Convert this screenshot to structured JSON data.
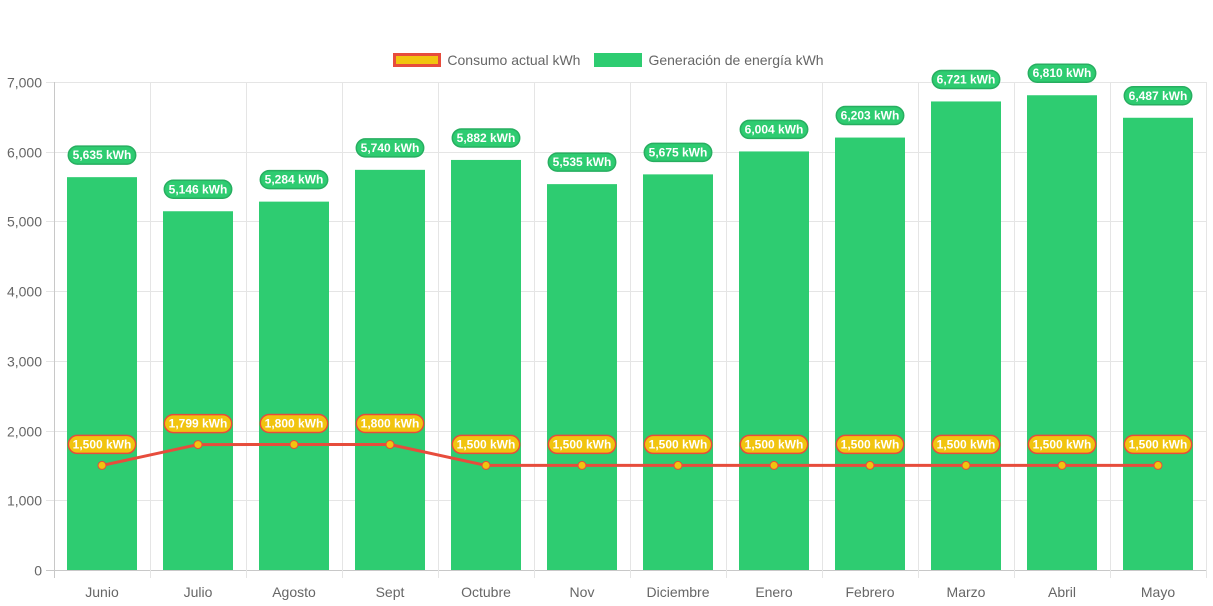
{
  "chart_data": {
    "type": "bar",
    "title": "",
    "xlabel": "",
    "ylabel": "",
    "ylim": [
      0,
      7000
    ],
    "yticks": [
      "0",
      "1,000",
      "2,000",
      "3,000",
      "4,000",
      "5,000",
      "6,000",
      "7,000"
    ],
    "ytick_values": [
      0,
      1000,
      2000,
      3000,
      4000,
      5000,
      6000,
      7000
    ],
    "grid": true,
    "legend_position": "top-center",
    "categories": [
      "Junio",
      "Julio",
      "Agosto",
      "Sept",
      "Octubre",
      "Nov",
      "Diciembre",
      "Enero",
      "Febrero",
      "Marzo",
      "Abril",
      "Mayo"
    ],
    "series": [
      {
        "name": "Consumo actual kWh",
        "type": "line",
        "color": "#e74c3c",
        "point_color": "#f1c40f",
        "values": [
          1500,
          1799,
          1800,
          1800,
          1500,
          1500,
          1500,
          1500,
          1500,
          1500,
          1500,
          1500
        ],
        "labels": [
          "1,500 kWh",
          "1,799 kWh",
          "1,800 kWh",
          "1,800 kWh",
          "1,500 kWh",
          "1,500 kWh",
          "1,500 kWh",
          "1,500 kWh",
          "1,500 kWh",
          "1,500 kWh",
          "1,500 kWh",
          "1,500 kWh"
        ]
      },
      {
        "name": "Generación de energía kWh",
        "type": "bar",
        "color": "#2ecc71",
        "values": [
          5635,
          5146,
          5284,
          5740,
          5882,
          5535,
          5675,
          6004,
          6203,
          6721,
          6810,
          6487
        ],
        "labels": [
          "5,635 kWh",
          "5,146 kWh",
          "5,284 kWh",
          "5,740 kWh",
          "5,882 kWh",
          "5,535 kWh",
          "5,675 kWh",
          "6,004 kWh",
          "6,203 kWh",
          "6,721 kWh",
          "6,810 kWh",
          "6,487 kWh"
        ]
      }
    ]
  },
  "legend": {
    "line_label": "Consumo actual kWh",
    "bar_label": "Generación de energía kWh"
  }
}
